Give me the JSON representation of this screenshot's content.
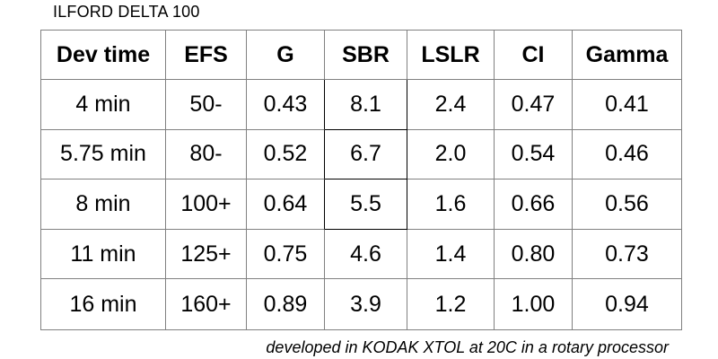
{
  "title": "ILFORD DELTA 100",
  "footnote": "developed in KODAK XTOL at 20C in a rotary processor",
  "colors": {
    "background": "#ffffff",
    "grid_line": "#808080",
    "highlight_outline": "#000000",
    "text": "#000000"
  },
  "chart_data": {
    "type": "table",
    "title": "ILFORD DELTA 100",
    "columns": [
      "Dev time",
      "EFS",
      "G",
      "SBR",
      "LSLR",
      "CI",
      "Gamma"
    ],
    "rows": [
      [
        "4 min",
        "50-",
        "0.43",
        "8.1",
        "2.4",
        "0.47",
        "0.41"
      ],
      [
        "5.75 min",
        "80-",
        "0.52",
        "6.7",
        "2.0",
        "0.54",
        "0.46"
      ],
      [
        "8 min",
        "100+",
        "0.64",
        "5.5",
        "1.6",
        "0.66",
        "0.56"
      ],
      [
        "11 min",
        "125+",
        "0.75",
        "4.6",
        "1.4",
        "0.80",
        "0.73"
      ],
      [
        "16 min",
        "160+",
        "0.89",
        "3.9",
        "1.2",
        "1.00",
        "0.94"
      ]
    ],
    "highlighted_cells_note": "SBR values 8.1, 6.7, 5.5 (rows 1-3) are outlined in black",
    "note": "developed in KODAK XTOL at 20C in a rotary processor",
    "layout": {
      "grid": "on",
      "header_row_bold": true
    }
  }
}
